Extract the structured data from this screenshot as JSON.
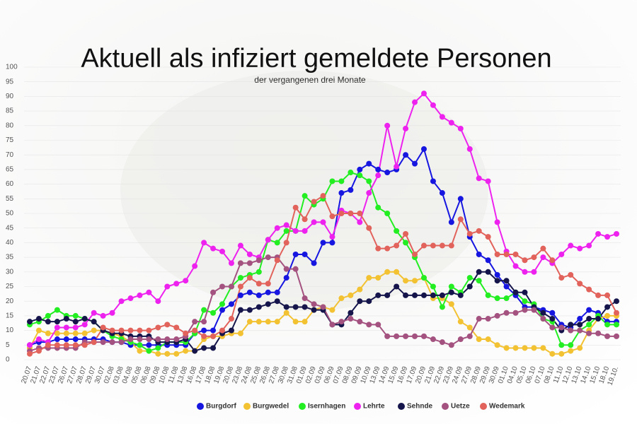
{
  "chart_data": {
    "type": "line",
    "title": "Aktuell als infiziert gemeldete Personen",
    "subtitle": "der vergangenen drei Monate",
    "categories": [
      "20.07",
      "21.07",
      "22.07",
      "23.07",
      "26.07",
      "27.07",
      "28.07",
      "29.07",
      "30.07",
      "02.08",
      "03.08",
      "04.08",
      "05.08",
      "06.08",
      "09.08",
      "10.08",
      "11.08",
      "13.08",
      "16.08",
      "17.08",
      "18.08",
      "19.08",
      "20.08",
      "23.08",
      "24.08",
      "25.08",
      "26.08",
      "27.08",
      "30.08",
      "31.08",
      "01.09",
      "02.09",
      "03.09",
      "06.09",
      "07.09",
      "08.09",
      "09.09",
      "10.09",
      "13.09",
      "14.09",
      "15.09",
      "16.09",
      "17.09",
      "20.09",
      "21.09",
      "22.09",
      "23.09",
      "24.09",
      "27.09",
      "28.09",
      "29.09",
      "30.09",
      "01.10",
      "04.10",
      "05.10",
      "06.10",
      "07.10",
      "08.10",
      "11.10",
      "12.10",
      "13.10",
      "14.10",
      "15.10",
      "18.10",
      "19.10."
    ],
    "series": [
      {
        "name": "Burgdorf",
        "color": "#1616e0",
        "values": [
          5,
          6,
          6,
          7,
          7,
          7,
          7,
          7,
          7,
          6,
          6,
          5,
          5,
          5,
          5,
          5,
          5,
          5,
          9,
          10,
          10,
          17,
          19,
          22,
          23,
          22,
          23,
          23,
          28,
          36,
          36,
          33,
          40,
          40,
          57,
          58,
          65,
          67,
          65,
          64,
          65,
          70,
          67,
          72,
          61,
          57,
          47,
          55,
          42,
          36,
          34,
          29,
          25,
          22,
          18,
          18,
          17,
          16,
          12,
          11,
          14,
          17,
          16,
          13,
          13
        ]
      },
      {
        "name": "Burgwedel",
        "color": "#f2c232",
        "values": [
          4,
          10,
          9,
          9,
          9,
          9,
          9,
          10,
          10,
          9,
          8,
          6,
          3,
          3,
          2,
          2,
          2,
          3,
          3,
          7,
          8,
          8,
          9,
          9,
          13,
          13,
          13,
          13,
          16,
          13,
          13,
          17,
          18,
          17,
          21,
          22,
          24,
          28,
          28,
          30,
          30,
          27,
          27,
          28,
          21,
          21,
          19,
          13,
          11,
          7,
          7,
          5,
          4,
          4,
          4,
          4,
          4,
          2,
          2,
          3,
          4,
          10,
          14,
          15,
          15
        ]
      },
      {
        "name": "Isernhagen",
        "color": "#22ee22",
        "values": [
          12,
          13,
          15,
          17,
          15,
          15,
          14,
          13,
          10,
          8,
          7,
          6,
          5,
          3,
          4,
          6,
          6,
          6,
          9,
          17,
          16,
          19,
          25,
          28,
          29,
          30,
          41,
          40,
          44,
          44,
          56,
          53,
          55,
          61,
          61,
          64,
          63,
          61,
          52,
          50,
          44,
          40,
          35,
          28,
          25,
          18,
          25,
          23,
          28,
          27,
          22,
          21,
          21,
          23,
          20,
          19,
          14,
          13,
          5,
          5,
          10,
          12,
          15,
          12,
          12
        ]
      },
      {
        "name": "Lehrte",
        "color": "#ee22ee",
        "values": [
          5,
          7,
          6,
          11,
          11,
          11,
          12,
          16,
          15,
          16,
          20,
          21,
          22,
          23,
          20,
          25,
          26,
          27,
          32,
          40,
          38,
          37,
          33,
          39,
          36,
          35,
          41,
          45,
          46,
          44,
          44,
          47,
          47,
          42,
          51,
          50,
          47,
          57,
          63,
          80,
          66,
          79,
          88,
          91,
          87,
          83,
          81,
          79,
          72,
          62,
          61,
          47,
          37,
          32,
          30,
          30,
          35,
          33,
          36,
          39,
          38,
          39,
          43,
          42,
          43
        ]
      },
      {
        "name": "Sehnde",
        "color": "#15154c",
        "values": [
          13,
          14,
          13,
          13,
          14,
          13,
          14,
          13,
          10,
          9,
          9,
          8,
          8,
          8,
          6,
          6,
          6,
          7,
          3,
          4,
          4,
          9,
          10,
          17,
          17,
          18,
          19,
          20,
          18,
          18,
          18,
          17,
          17,
          12,
          12,
          16,
          20,
          20,
          22,
          22,
          25,
          22,
          22,
          22,
          22,
          22,
          23,
          22,
          25,
          30,
          30,
          27,
          27,
          23,
          23,
          18,
          16,
          14,
          10,
          12,
          12,
          14,
          14,
          18,
          20
        ]
      },
      {
        "name": "Uetze",
        "color": "#a4527f",
        "values": [
          3,
          4,
          4,
          4,
          4,
          4,
          6,
          6,
          6,
          6,
          6,
          7,
          7,
          7,
          7,
          7,
          7,
          8,
          13,
          13,
          23,
          25,
          25,
          33,
          33,
          34,
          35,
          35,
          31,
          31,
          21,
          19,
          18,
          12,
          13,
          14,
          13,
          12,
          12,
          8,
          8,
          8,
          8,
          8,
          7,
          6,
          5,
          7,
          8,
          14,
          14,
          15,
          16,
          16,
          17,
          17,
          14,
          11,
          11,
          10,
          10,
          9,
          9,
          8,
          8
        ]
      },
      {
        "name": "Wedemark",
        "color": "#e2625c",
        "values": [
          2,
          3,
          5,
          5,
          5,
          5,
          5,
          6,
          11,
          10,
          10,
          10,
          10,
          10,
          11,
          12,
          11,
          9,
          10,
          8,
          8,
          10,
          14,
          25,
          28,
          26,
          26,
          34,
          40,
          52,
          48,
          54,
          56,
          49,
          50,
          50,
          50,
          45,
          38,
          38,
          39,
          43,
          36,
          39,
          39,
          39,
          39,
          48,
          43,
          44,
          42,
          36,
          36,
          36,
          34,
          35,
          38,
          34,
          28,
          29,
          26,
          24,
          22,
          22,
          16
        ]
      }
    ],
    "ylim": [
      0,
      100
    ],
    "yticks": [
      0,
      5,
      10,
      15,
      20,
      25,
      30,
      35,
      40,
      45,
      50,
      55,
      60,
      65,
      70,
      75,
      80,
      85,
      90,
      95,
      100
    ],
    "grid": true
  }
}
